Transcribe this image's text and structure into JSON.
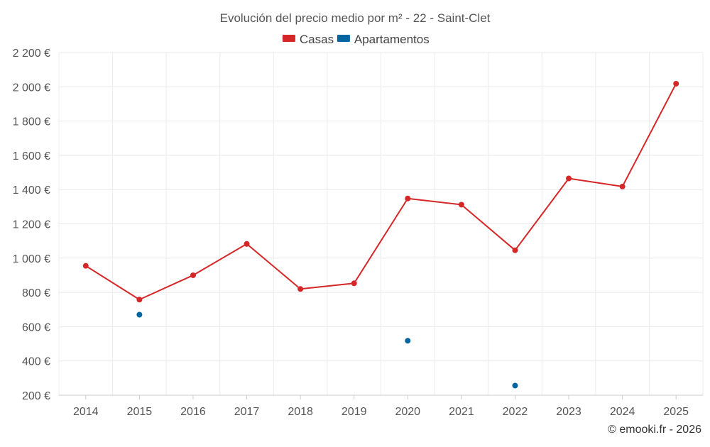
{
  "chart_data": {
    "type": "line",
    "title": "Evolución del precio medio por m² - 22 - Saint-Clet",
    "categories": [
      "2014",
      "2015",
      "2016",
      "2017",
      "2018",
      "2019",
      "2020",
      "2021",
      "2022",
      "2023",
      "2024",
      "2025"
    ],
    "series": [
      {
        "name": "Casas",
        "color": "#d62728",
        "values": [
          955,
          758,
          900,
          1083,
          820,
          853,
          1348,
          1312,
          1046,
          1465,
          1418,
          2018
        ]
      },
      {
        "name": "Apartamentos",
        "color": "#0065a0",
        "values": [
          null,
          670,
          null,
          null,
          null,
          null,
          518,
          null,
          256,
          null,
          null,
          null
        ]
      }
    ],
    "y_ticks": [
      200,
      400,
      600,
      800,
      1000,
      1200,
      1400,
      1600,
      1800,
      2000,
      2200
    ],
    "y_tick_labels": [
      "200 €",
      "400 €",
      "600 €",
      "800 €",
      "1 000 €",
      "1 200 €",
      "1 400 €",
      "1 600 €",
      "1 800 €",
      "2 000 €",
      "2 200 €"
    ],
    "ylim": [
      200,
      2200
    ],
    "xlabel": "",
    "ylabel": "",
    "grid": true,
    "legend_position": "top-center"
  },
  "credit": "© emooki.fr - 2026"
}
